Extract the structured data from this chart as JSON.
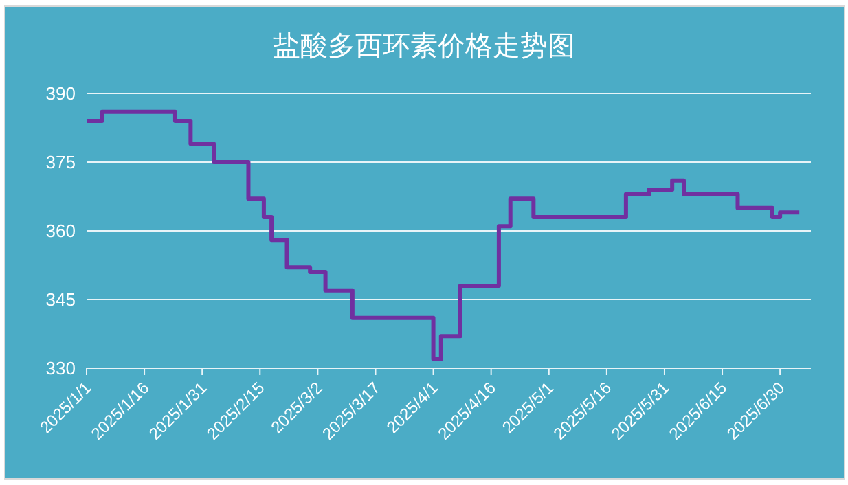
{
  "chart_data": {
    "type": "step",
    "title": "盐酸多西环素价格走势图",
    "x": [
      "2025-01-01",
      "2025-01-05",
      "2025-01-24",
      "2025-01-28",
      "2025-02-03",
      "2025-02-12",
      "2025-02-16",
      "2025-02-18",
      "2025-02-22",
      "2025-02-28",
      "2025-03-04",
      "2025-03-11",
      "2025-03-30",
      "2025-04-01",
      "2025-04-03",
      "2025-04-08",
      "2025-04-18",
      "2025-04-21",
      "2025-04-27",
      "2025-05-21",
      "2025-05-27",
      "2025-06-02",
      "2025-06-05",
      "2025-06-19",
      "2025-06-28",
      "2025-06-30",
      "2025-07-05"
    ],
    "series": [
      {
        "color": "#7030a0",
        "values": [
          384,
          386,
          384,
          379,
          375,
          367,
          363,
          358,
          352,
          351,
          347,
          341,
          341,
          332,
          337,
          348,
          361,
          367,
          363,
          368,
          369,
          371,
          368,
          365,
          363,
          364,
          364
        ]
      }
    ],
    "xlim": [
      "2025-01-01",
      "2025-07-08"
    ],
    "xticks": [
      {
        "value": "2025-01-01",
        "label": "2025/1/1"
      },
      {
        "value": "2025-01-16",
        "label": "2025/1/16"
      },
      {
        "value": "2025-01-31",
        "label": "2025/1/31"
      },
      {
        "value": "2025-02-15",
        "label": "2025/2/15"
      },
      {
        "value": "2025-03-02",
        "label": "2025/3/2"
      },
      {
        "value": "2025-03-17",
        "label": "2025/3/17"
      },
      {
        "value": "2025-04-01",
        "label": "2025/4/1"
      },
      {
        "value": "2025-04-16",
        "label": "2025/4/16"
      },
      {
        "value": "2025-05-01",
        "label": "2025/5/1"
      },
      {
        "value": "2025-05-16",
        "label": "2025/5/16"
      },
      {
        "value": "2025-05-31",
        "label": "2025/5/31"
      },
      {
        "value": "2025-06-15",
        "label": "2025/6/15"
      },
      {
        "value": "2025-06-30",
        "label": "2025/6/30"
      }
    ],
    "ylim": [
      330,
      390
    ],
    "yticks": [
      330,
      345,
      360,
      375,
      390
    ],
    "grid": "y",
    "marker": "none",
    "line_style": "solid"
  }
}
